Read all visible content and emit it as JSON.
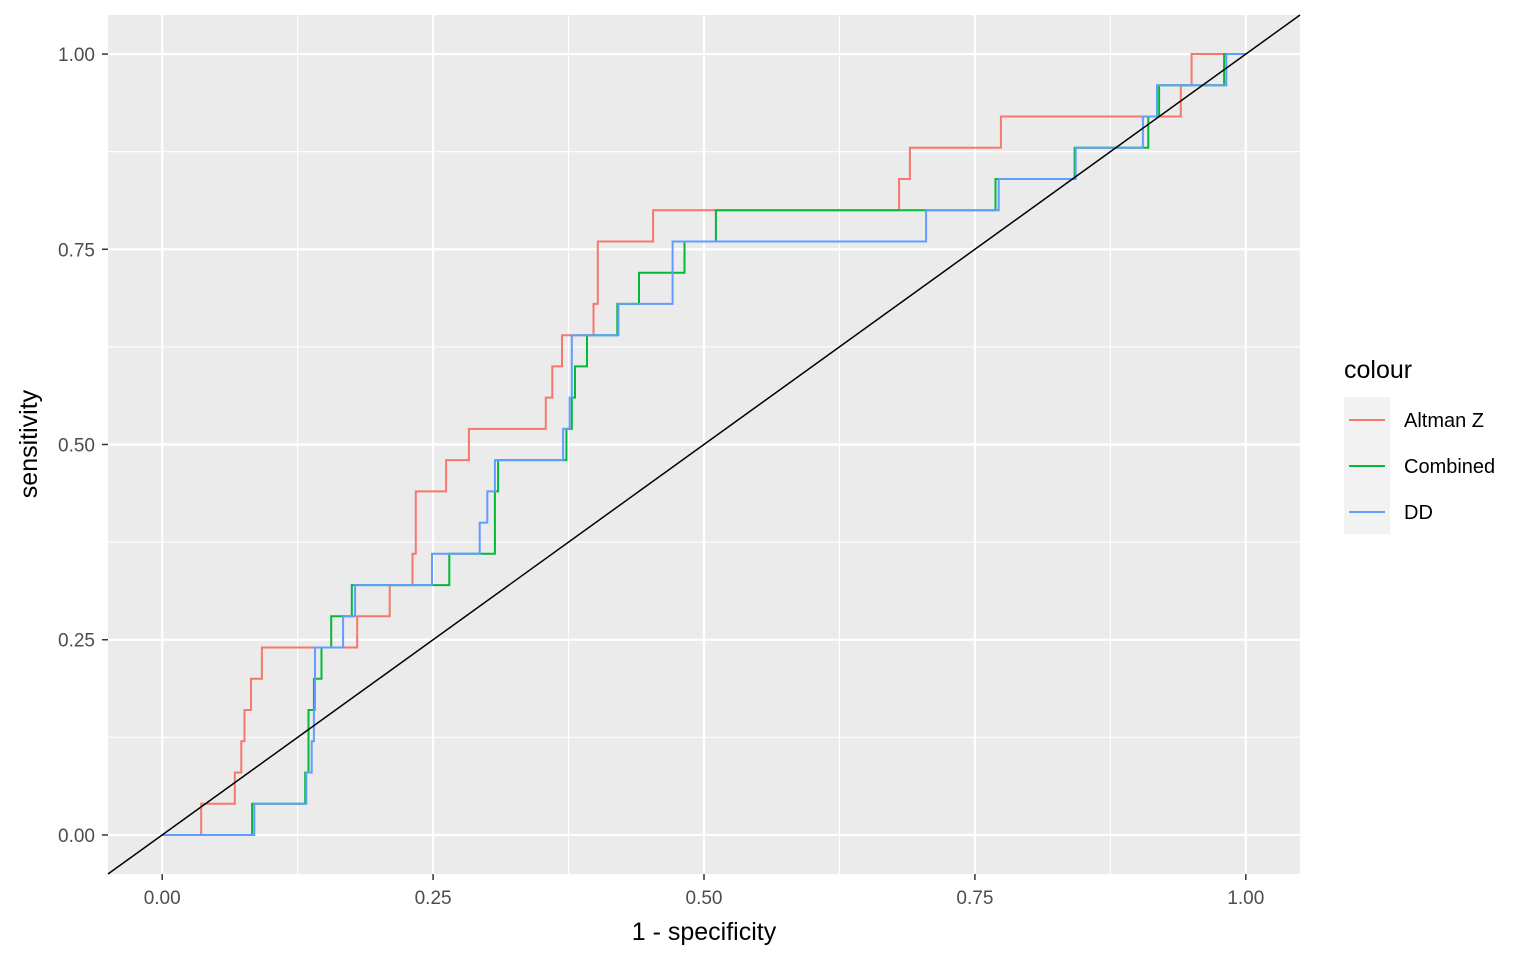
{
  "chart_data": {
    "type": "line",
    "step": true,
    "title": "",
    "xlabel": "1 - specificity",
    "ylabel": "sensitivity",
    "xlim": [
      -0.05,
      1.05
    ],
    "ylim": [
      -0.05,
      1.05
    ],
    "xticks": [
      0,
      0.25,
      0.5,
      0.75,
      1
    ],
    "xtick_labels": [
      "0.00",
      "0.25",
      "0.50",
      "0.75",
      "1.00"
    ],
    "yticks": [
      0,
      0.25,
      0.5,
      0.75,
      1
    ],
    "ytick_labels": [
      "0.00",
      "0.25",
      "0.50",
      "0.75",
      "1.00"
    ],
    "grid": true,
    "background": "#ebebeb",
    "legend": {
      "title": "colour",
      "position": "right",
      "entries": [
        {
          "label": "Altman Z",
          "color": "#f8766d"
        },
        {
          "label": "Combined",
          "color": "#00ba38"
        },
        {
          "label": "DD",
          "color": "#619cff"
        }
      ]
    },
    "reference_line": {
      "x": [
        -0.05,
        1.05
      ],
      "y": [
        -0.05,
        1.05
      ],
      "color": "#000000"
    },
    "series": [
      {
        "name": "Altman Z",
        "color": "#f8766d",
        "points": [
          [
            0,
            0
          ],
          [
            0.036,
            0
          ],
          [
            0.036,
            0.04
          ],
          [
            0.067,
            0.04
          ],
          [
            0.067,
            0.08
          ],
          [
            0.073,
            0.08
          ],
          [
            0.073,
            0.12
          ],
          [
            0.076,
            0.12
          ],
          [
            0.076,
            0.16
          ],
          [
            0.082,
            0.16
          ],
          [
            0.082,
            0.2
          ],
          [
            0.092,
            0.2
          ],
          [
            0.092,
            0.24
          ],
          [
            0.18,
            0.24
          ],
          [
            0.18,
            0.28
          ],
          [
            0.21,
            0.28
          ],
          [
            0.21,
            0.32
          ],
          [
            0.231,
            0.32
          ],
          [
            0.231,
            0.36
          ],
          [
            0.234,
            0.36
          ],
          [
            0.234,
            0.44
          ],
          [
            0.262,
            0.44
          ],
          [
            0.262,
            0.48
          ],
          [
            0.283,
            0.48
          ],
          [
            0.283,
            0.52
          ],
          [
            0.354,
            0.52
          ],
          [
            0.354,
            0.56
          ],
          [
            0.36,
            0.56
          ],
          [
            0.36,
            0.6
          ],
          [
            0.369,
            0.6
          ],
          [
            0.369,
            0.64
          ],
          [
            0.398,
            0.64
          ],
          [
            0.398,
            0.68
          ],
          [
            0.402,
            0.68
          ],
          [
            0.402,
            0.76
          ],
          [
            0.453,
            0.76
          ],
          [
            0.453,
            0.8
          ],
          [
            0.68,
            0.8
          ],
          [
            0.68,
            0.84
          ],
          [
            0.69,
            0.84
          ],
          [
            0.69,
            0.88
          ],
          [
            0.774,
            0.88
          ],
          [
            0.774,
            0.92
          ],
          [
            0.94,
            0.92
          ],
          [
            0.94,
            0.96
          ],
          [
            0.95,
            0.96
          ],
          [
            0.95,
            1
          ],
          [
            1,
            1
          ]
        ]
      },
      {
        "name": "Combined",
        "color": "#00ba38",
        "points": [
          [
            0,
            0
          ],
          [
            0.083,
            0
          ],
          [
            0.083,
            0.04
          ],
          [
            0.132,
            0.04
          ],
          [
            0.132,
            0.08
          ],
          [
            0.135,
            0.08
          ],
          [
            0.135,
            0.16
          ],
          [
            0.14,
            0.16
          ],
          [
            0.14,
            0.2
          ],
          [
            0.147,
            0.2
          ],
          [
            0.147,
            0.24
          ],
          [
            0.156,
            0.24
          ],
          [
            0.156,
            0.28
          ],
          [
            0.175,
            0.28
          ],
          [
            0.175,
            0.32
          ],
          [
            0.265,
            0.32
          ],
          [
            0.265,
            0.36
          ],
          [
            0.307,
            0.36
          ],
          [
            0.307,
            0.44
          ],
          [
            0.31,
            0.44
          ],
          [
            0.31,
            0.48
          ],
          [
            0.373,
            0.48
          ],
          [
            0.373,
            0.52
          ],
          [
            0.378,
            0.52
          ],
          [
            0.378,
            0.56
          ],
          [
            0.381,
            0.56
          ],
          [
            0.381,
            0.6
          ],
          [
            0.392,
            0.6
          ],
          [
            0.392,
            0.64
          ],
          [
            0.42,
            0.64
          ],
          [
            0.42,
            0.68
          ],
          [
            0.44,
            0.68
          ],
          [
            0.44,
            0.72
          ],
          [
            0.482,
            0.72
          ],
          [
            0.482,
            0.76
          ],
          [
            0.511,
            0.76
          ],
          [
            0.511,
            0.8
          ],
          [
            0.769,
            0.8
          ],
          [
            0.769,
            0.84
          ],
          [
            0.842,
            0.84
          ],
          [
            0.842,
            0.88
          ],
          [
            0.91,
            0.88
          ],
          [
            0.91,
            0.92
          ],
          [
            0.92,
            0.92
          ],
          [
            0.92,
            0.96
          ],
          [
            0.98,
            0.96
          ],
          [
            0.98,
            1
          ],
          [
            1,
            1
          ]
        ]
      },
      {
        "name": "DD",
        "color": "#619cff",
        "points": [
          [
            0,
            0
          ],
          [
            0.085,
            0
          ],
          [
            0.085,
            0.04
          ],
          [
            0.133,
            0.04
          ],
          [
            0.133,
            0.08
          ],
          [
            0.138,
            0.08
          ],
          [
            0.138,
            0.12
          ],
          [
            0.14,
            0.12
          ],
          [
            0.14,
            0.16
          ],
          [
            0.141,
            0.16
          ],
          [
            0.141,
            0.24
          ],
          [
            0.167,
            0.24
          ],
          [
            0.167,
            0.28
          ],
          [
            0.178,
            0.28
          ],
          [
            0.178,
            0.32
          ],
          [
            0.249,
            0.32
          ],
          [
            0.249,
            0.36
          ],
          [
            0.293,
            0.36
          ],
          [
            0.293,
            0.4
          ],
          [
            0.3,
            0.4
          ],
          [
            0.3,
            0.44
          ],
          [
            0.307,
            0.44
          ],
          [
            0.307,
            0.48
          ],
          [
            0.37,
            0.48
          ],
          [
            0.37,
            0.52
          ],
          [
            0.376,
            0.52
          ],
          [
            0.376,
            0.56
          ],
          [
            0.378,
            0.56
          ],
          [
            0.378,
            0.64
          ],
          [
            0.421,
            0.64
          ],
          [
            0.421,
            0.68
          ],
          [
            0.471,
            0.68
          ],
          [
            0.471,
            0.76
          ],
          [
            0.705,
            0.76
          ],
          [
            0.705,
            0.8
          ],
          [
            0.772,
            0.8
          ],
          [
            0.772,
            0.84
          ],
          [
            0.843,
            0.84
          ],
          [
            0.843,
            0.88
          ],
          [
            0.905,
            0.88
          ],
          [
            0.905,
            0.92
          ],
          [
            0.918,
            0.92
          ],
          [
            0.918,
            0.96
          ],
          [
            0.982,
            0.96
          ],
          [
            0.982,
            1
          ],
          [
            1,
            1
          ]
        ]
      }
    ]
  }
}
